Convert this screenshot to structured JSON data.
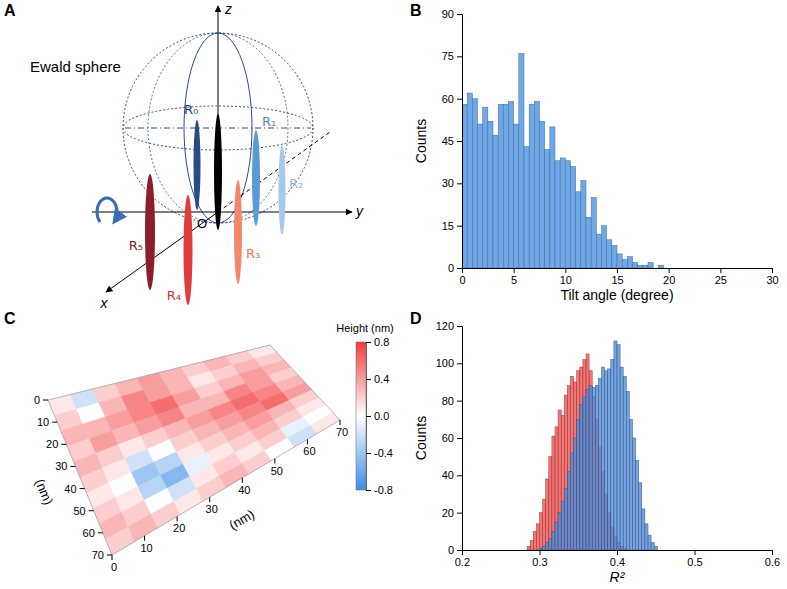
{
  "chart_data": [
    {
      "type": "diagram",
      "panel_label": "A",
      "title": "Ewald sphere",
      "axis_labels": [
        "x",
        "y",
        "z"
      ],
      "origin_label": "O",
      "rod_labels": [
        "R₀",
        "R₁",
        "R₂",
        "R₃",
        "R₄",
        "R₅",
        null
      ],
      "colors": [
        "#2c4a8a",
        "#5b9bd5",
        "#a9c8e8",
        "#f4876b",
        "#e03c3c",
        "#8b1e2a",
        "#000000"
      ]
    },
    {
      "type": "histogram",
      "panel_label": "B",
      "x_label": "Tilt angle (degree)",
      "y_label": "Counts",
      "xlim": [
        0,
        30
      ],
      "xticks": [
        0,
        5,
        10,
        15,
        20,
        25,
        30
      ],
      "ylim": [
        0,
        90
      ],
      "yticks": [
        0,
        15,
        30,
        45,
        60,
        75,
        90
      ],
      "color": "#6ea8e8",
      "bins": [
        0,
        0.5,
        1,
        1.5,
        2,
        2.5,
        3,
        3.5,
        4,
        4.5,
        5,
        5.5,
        6,
        6.5,
        7,
        7.5,
        8,
        8.5,
        9,
        9.5,
        10,
        10.5,
        11,
        11.5,
        12,
        12.5,
        13,
        13.5,
        14,
        14.5,
        15,
        15.5,
        16,
        16.5,
        17,
        17.5,
        18,
        18.5,
        19,
        19.5
      ],
      "counts": [
        58,
        62,
        60,
        51,
        57,
        52,
        47,
        58,
        58,
        59,
        51,
        76,
        43,
        58,
        59,
        52,
        42,
        50,
        38,
        39,
        38,
        36,
        27,
        31,
        18,
        25,
        12,
        15,
        10,
        8,
        5,
        3,
        4,
        2,
        1,
        1,
        2,
        0,
        1
      ]
    },
    {
      "type": "heatmap",
      "panel_label": "C",
      "x_label": "(nm)",
      "y_label": "(nm)",
      "xlim": [
        0,
        70
      ],
      "xticks": [
        0,
        10,
        20,
        30,
        40,
        50,
        60,
        70
      ],
      "ylim": [
        0,
        70
      ],
      "yticks": [
        0,
        10,
        20,
        30,
        40,
        50,
        60,
        70
      ],
      "cells": [
        [
          0.1,
          -0.2,
          0.2,
          0.3,
          0.4,
          0.3,
          0.2,
          0.3,
          0.2,
          0.1
        ],
        [
          0.2,
          0.0,
          0.3,
          0.5,
          0.4,
          0.3,
          0.1,
          0.2,
          0.3,
          0.2
        ],
        [
          0.3,
          0.3,
          0.4,
          0.5,
          0.6,
          0.4,
          0.2,
          0.3,
          0.4,
          0.3
        ],
        [
          0.2,
          0.4,
          0.3,
          0.4,
          0.5,
          0.3,
          0.3,
          0.5,
          0.4,
          0.2
        ],
        [
          0.3,
          0.2,
          0.1,
          0.2,
          0.3,
          0.4,
          0.5,
          0.6,
          0.5,
          0.3
        ],
        [
          0.2,
          0.1,
          -0.2,
          0.0,
          0.2,
          0.3,
          0.4,
          0.5,
          0.6,
          0.4
        ],
        [
          0.1,
          0.0,
          -0.4,
          -0.3,
          0.1,
          0.2,
          0.3,
          0.4,
          0.3,
          0.2
        ],
        [
          0.2,
          0.1,
          -0.3,
          -0.5,
          -0.1,
          0.1,
          0.2,
          0.3,
          0.2,
          0.1
        ],
        [
          0.3,
          0.2,
          0.0,
          -0.2,
          0.1,
          0.2,
          0.1,
          0.2,
          -0.1,
          0.0
        ],
        [
          0.2,
          0.3,
          0.2,
          0.1,
          0.2,
          0.3,
          0.2,
          0.0,
          -0.2,
          0.1
        ]
      ],
      "colorbar_title": "Height (nm)",
      "colorbar_range": [
        -0.8,
        0.8
      ],
      "colorbar_ticks": [
        -0.8,
        -0.4,
        {
          "value": 0,
          "label": "0.0"
        },
        0.4,
        0.8
      ]
    },
    {
      "type": "histogram",
      "panel_label": "D",
      "x_label": "R²",
      "y_label": "Counts",
      "xlim": [
        0.2,
        0.6
      ],
      "xticks": [
        0.2,
        0.3,
        0.4,
        0.5,
        0.6
      ],
      "ylim": [
        0,
        120
      ],
      "yticks": [
        0,
        20,
        40,
        60,
        80,
        100,
        120
      ],
      "series": [
        {
          "color": "#f0504f",
          "bins": [
            0.284,
            0.288,
            0.292,
            0.296,
            0.3,
            0.304,
            0.308,
            0.312,
            0.316,
            0.32,
            0.324,
            0.328,
            0.332,
            0.336,
            0.34,
            0.344,
            0.348,
            0.352,
            0.356,
            0.36,
            0.364,
            0.368,
            0.372,
            0.376,
            0.38,
            0.384,
            0.388,
            0.392,
            0.396,
            0.4,
            0.404,
            0.408,
            0.412
          ],
          "counts": [
            2,
            5,
            10,
            14,
            20,
            27,
            38,
            50,
            61,
            66,
            75,
            72,
            83,
            88,
            93,
            90,
            96,
            98,
            102,
            105,
            96,
            82,
            70,
            55,
            42,
            30,
            20,
            12,
            7,
            4,
            2,
            1
          ]
        },
        {
          "color": "#4f8ad9",
          "bins": [
            0.3,
            0.304,
            0.308,
            0.312,
            0.316,
            0.32,
            0.324,
            0.328,
            0.332,
            0.336,
            0.34,
            0.344,
            0.348,
            0.352,
            0.356,
            0.36,
            0.364,
            0.368,
            0.372,
            0.376,
            0.38,
            0.384,
            0.388,
            0.392,
            0.396,
            0.4,
            0.404,
            0.408,
            0.412,
            0.416,
            0.42,
            0.424,
            0.428,
            0.432,
            0.436,
            0.44,
            0.444,
            0.448,
            0.452
          ],
          "counts": [
            1,
            2,
            4,
            6,
            10,
            15,
            20,
            26,
            33,
            42,
            52,
            60,
            70,
            78,
            82,
            86,
            88,
            87,
            88,
            92,
            98,
            96,
            97,
            102,
            112,
            110,
            98,
            93,
            85,
            70,
            60,
            48,
            36,
            22,
            14,
            8,
            4,
            2
          ]
        }
      ]
    }
  ]
}
